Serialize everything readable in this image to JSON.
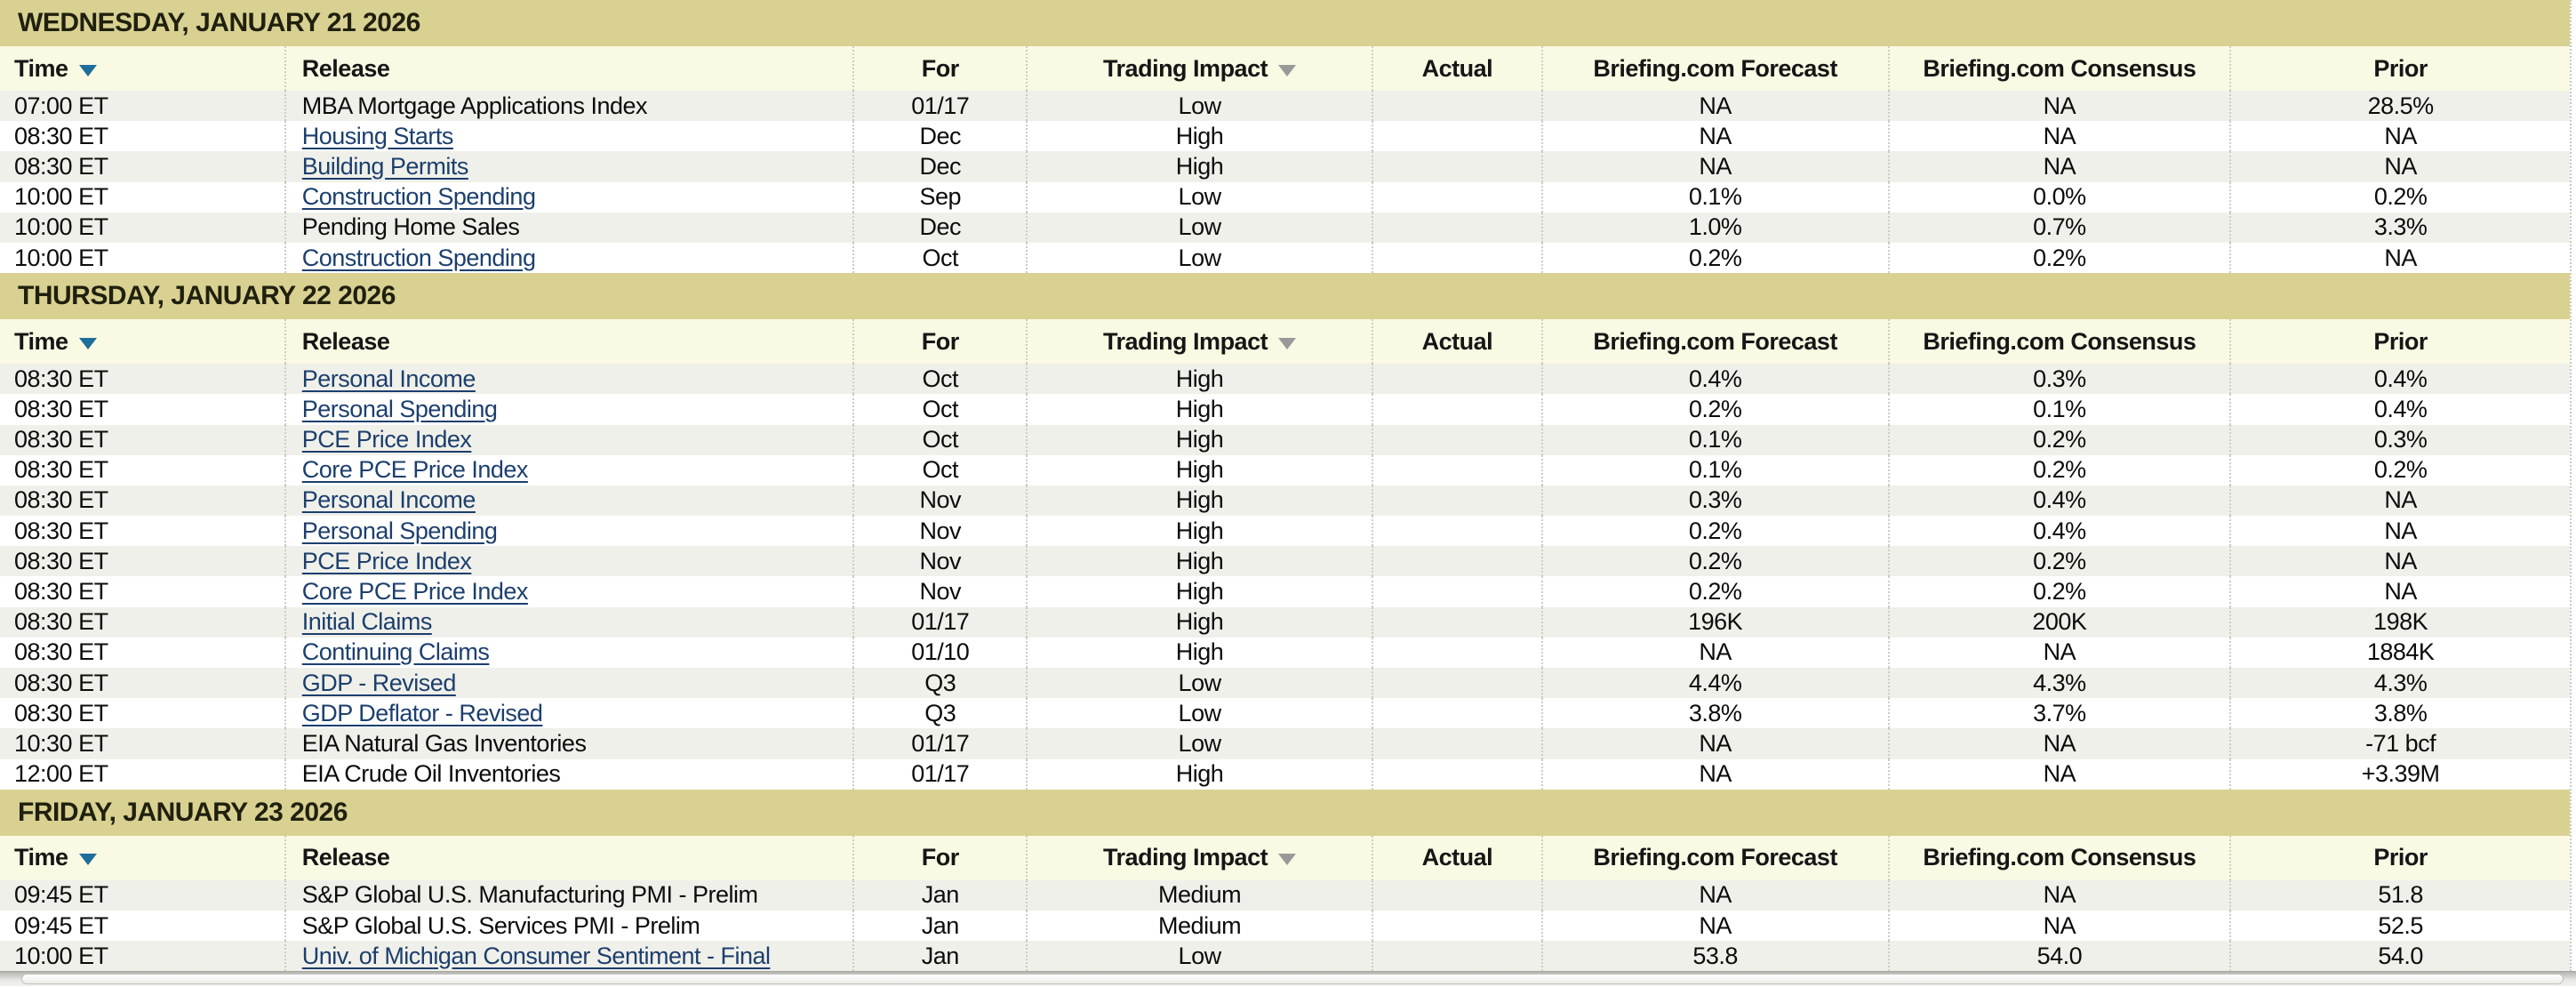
{
  "colors": {
    "date_band_bg": "#d9d192",
    "date_band_text": "#20200e",
    "header_bg": "#faf9e3",
    "row_alt_bg": "#f0f0ea",
    "row_bg": "#ffffff",
    "link": "#1c3f6e",
    "time_sort_arrow": "#1e6e9b",
    "impact_sort_arrow": "#999999",
    "column_divider": "#cdcdc6"
  },
  "table": {
    "columns": [
      {
        "key": "time",
        "label": "Time",
        "sortable": true,
        "sort_icon": "triangle-down",
        "arrow_color": "#1e6e9b"
      },
      {
        "key": "release",
        "label": "Release",
        "sortable": false
      },
      {
        "key": "for",
        "label": "For",
        "sortable": false
      },
      {
        "key": "impact",
        "label": "Trading Impact",
        "sortable": true,
        "sort_icon": "triangle-down",
        "arrow_color": "#999999"
      },
      {
        "key": "actual",
        "label": "Actual",
        "sortable": false
      },
      {
        "key": "forecast",
        "label": "Briefing.com Forecast",
        "sortable": false
      },
      {
        "key": "consensus",
        "label": "Briefing.com Consensus",
        "sortable": false
      },
      {
        "key": "prior",
        "label": "Prior",
        "sortable": false
      }
    ],
    "sections": [
      {
        "date": "WEDNESDAY, JANUARY 21 2026",
        "rows": [
          {
            "time": "07:00 ET",
            "release": "MBA Mortgage Applications Index",
            "is_link": false,
            "for": "01/17",
            "impact": "Low",
            "actual": "",
            "forecast": "NA",
            "consensus": "NA",
            "prior": "28.5%"
          },
          {
            "time": "08:30 ET",
            "release": "Housing Starts",
            "is_link": true,
            "for": "Dec",
            "impact": "High",
            "actual": "",
            "forecast": "NA",
            "consensus": "NA",
            "prior": "NA"
          },
          {
            "time": "08:30 ET",
            "release": "Building Permits",
            "is_link": true,
            "for": "Dec",
            "impact": "High",
            "actual": "",
            "forecast": "NA",
            "consensus": "NA",
            "prior": "NA"
          },
          {
            "time": "10:00 ET",
            "release": "Construction Spending",
            "is_link": true,
            "for": "Sep",
            "impact": "Low",
            "actual": "",
            "forecast": "0.1%",
            "consensus": "0.0%",
            "prior": "0.2%"
          },
          {
            "time": "10:00 ET",
            "release": "Pending Home Sales",
            "is_link": false,
            "for": "Dec",
            "impact": "Low",
            "actual": "",
            "forecast": "1.0%",
            "consensus": "0.7%",
            "prior": "3.3%"
          },
          {
            "time": "10:00 ET",
            "release": "Construction Spending",
            "is_link": true,
            "for": "Oct",
            "impact": "Low",
            "actual": "",
            "forecast": "0.2%",
            "consensus": "0.2%",
            "prior": "NA"
          }
        ]
      },
      {
        "date": "THURSDAY, JANUARY 22 2026",
        "rows": [
          {
            "time": "08:30 ET",
            "release": "Personal Income",
            "is_link": true,
            "for": "Oct",
            "impact": "High",
            "actual": "",
            "forecast": "0.4%",
            "consensus": "0.3%",
            "prior": "0.4%"
          },
          {
            "time": "08:30 ET",
            "release": "Personal Spending",
            "is_link": true,
            "for": "Oct",
            "impact": "High",
            "actual": "",
            "forecast": "0.2%",
            "consensus": "0.1%",
            "prior": "0.4%"
          },
          {
            "time": "08:30 ET",
            "release": "PCE Price Index",
            "is_link": true,
            "for": "Oct",
            "impact": "High",
            "actual": "",
            "forecast": "0.1%",
            "consensus": "0.2%",
            "prior": "0.3%"
          },
          {
            "time": "08:30 ET",
            "release": "Core PCE Price Index",
            "is_link": true,
            "for": "Oct",
            "impact": "High",
            "actual": "",
            "forecast": "0.1%",
            "consensus": "0.2%",
            "prior": "0.2%"
          },
          {
            "time": "08:30 ET",
            "release": "Personal Income",
            "is_link": true,
            "for": "Nov",
            "impact": "High",
            "actual": "",
            "forecast": "0.3%",
            "consensus": "0.4%",
            "prior": "NA"
          },
          {
            "time": "08:30 ET",
            "release": "Personal Spending",
            "is_link": true,
            "for": "Nov",
            "impact": "High",
            "actual": "",
            "forecast": "0.2%",
            "consensus": "0.4%",
            "prior": "NA"
          },
          {
            "time": "08:30 ET",
            "release": "PCE Price Index",
            "is_link": true,
            "for": "Nov",
            "impact": "High",
            "actual": "",
            "forecast": "0.2%",
            "consensus": "0.2%",
            "prior": "NA"
          },
          {
            "time": "08:30 ET",
            "release": "Core PCE Price Index",
            "is_link": true,
            "for": "Nov",
            "impact": "High",
            "actual": "",
            "forecast": "0.2%",
            "consensus": "0.2%",
            "prior": "NA"
          },
          {
            "time": "08:30 ET",
            "release": "Initial Claims",
            "is_link": true,
            "for": "01/17",
            "impact": "High",
            "actual": "",
            "forecast": "196K",
            "consensus": "200K",
            "prior": "198K"
          },
          {
            "time": "08:30 ET",
            "release": "Continuing Claims",
            "is_link": true,
            "for": "01/10",
            "impact": "High",
            "actual": "",
            "forecast": "NA",
            "consensus": "NA",
            "prior": "1884K"
          },
          {
            "time": "08:30 ET",
            "release": "GDP - Revised",
            "is_link": true,
            "for": "Q3",
            "impact": "Low",
            "actual": "",
            "forecast": "4.4%",
            "consensus": "4.3%",
            "prior": "4.3%"
          },
          {
            "time": "08:30 ET",
            "release": "GDP Deflator - Revised",
            "is_link": true,
            "for": "Q3",
            "impact": "Low",
            "actual": "",
            "forecast": "3.8%",
            "consensus": "3.7%",
            "prior": "3.8%"
          },
          {
            "time": "10:30 ET",
            "release": "EIA Natural Gas Inventories",
            "is_link": false,
            "for": "01/17",
            "impact": "Low",
            "actual": "",
            "forecast": "NA",
            "consensus": "NA",
            "prior": "-71 bcf"
          },
          {
            "time": "12:00 ET",
            "release": "EIA Crude Oil Inventories",
            "is_link": false,
            "for": "01/17",
            "impact": "High",
            "actual": "",
            "forecast": "NA",
            "consensus": "NA",
            "prior": "+3.39M"
          }
        ]
      },
      {
        "date": "FRIDAY, JANUARY 23 2026",
        "rows": [
          {
            "time": "09:45 ET",
            "release": "S&P Global U.S. Manufacturing PMI - Prelim",
            "is_link": false,
            "for": "Jan",
            "impact": "Medium",
            "actual": "",
            "forecast": "NA",
            "consensus": "NA",
            "prior": "51.8"
          },
          {
            "time": "09:45 ET",
            "release": "S&P Global U.S. Services PMI - Prelim",
            "is_link": false,
            "for": "Jan",
            "impact": "Medium",
            "actual": "",
            "forecast": "NA",
            "consensus": "NA",
            "prior": "52.5"
          },
          {
            "time": "10:00 ET",
            "release": "Univ. of Michigan Consumer Sentiment - Final",
            "is_link": true,
            "for": "Jan",
            "impact": "Low",
            "actual": "",
            "forecast": "53.8",
            "consensus": "54.0",
            "prior": "54.0"
          }
        ]
      }
    ]
  },
  "scrollbar": {
    "orientation": "horizontal"
  }
}
